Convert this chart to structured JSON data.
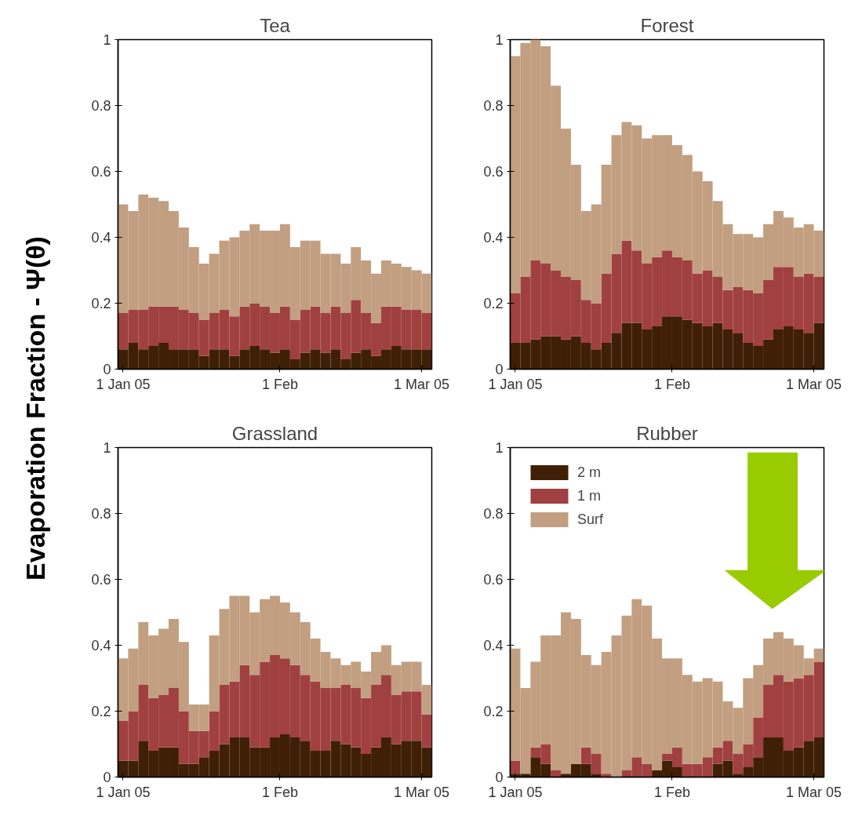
{
  "chart_data": [
    {
      "type": "bar",
      "stacked": true,
      "title": "Tea",
      "ylabel": "Evaporation Fraction - Ψ(θ)",
      "x": [
        "2005-01-01",
        "2005-01-03",
        "2005-01-05",
        "2005-01-07",
        "2005-01-09",
        "2005-01-11",
        "2005-01-13",
        "2005-01-15",
        "2005-01-17",
        "2005-01-19",
        "2005-01-21",
        "2005-01-23",
        "2005-01-25",
        "2005-01-27",
        "2005-01-29",
        "2005-01-31",
        "2005-02-02",
        "2005-02-04",
        "2005-02-06",
        "2005-02-08",
        "2005-02-10",
        "2005-02-12",
        "2005-02-14",
        "2005-02-16",
        "2005-02-18",
        "2005-02-20",
        "2005-02-22",
        "2005-02-24",
        "2005-02-26",
        "2005-02-28",
        "2005-03-02"
      ],
      "xlim": [
        "2004-12-31",
        "2005-03-03"
      ],
      "xticks": [
        {
          "value": "2005-01-01",
          "label": "1 Jan 05"
        },
        {
          "value": "2005-02-01",
          "label": "1 Feb"
        },
        {
          "value": "2005-03-01",
          "label": "1 Mar 05"
        }
      ],
      "ylim": [
        0,
        1
      ],
      "yticks": [
        0,
        0.2,
        0.4,
        0.6,
        0.8,
        1
      ],
      "series": [
        {
          "color": "#3f1f05",
          "values": [
            0.06,
            0.08,
            0.06,
            0.07,
            0.08,
            0.06,
            0.06,
            0.06,
            0.04,
            0.06,
            0.06,
            0.04,
            0.06,
            0.07,
            0.06,
            0.05,
            0.06,
            0.03,
            0.05,
            0.06,
            0.05,
            0.06,
            0.03,
            0.05,
            0.06,
            0.04,
            0.06,
            0.07,
            0.06,
            0.06,
            0.06
          ]
        },
        {
          "color": "#a04040",
          "values": [
            0.11,
            0.1,
            0.12,
            0.12,
            0.11,
            0.13,
            0.12,
            0.11,
            0.11,
            0.11,
            0.12,
            0.12,
            0.13,
            0.13,
            0.13,
            0.12,
            0.13,
            0.12,
            0.13,
            0.13,
            0.12,
            0.13,
            0.14,
            0.16,
            0.11,
            0.1,
            0.13,
            0.12,
            0.12,
            0.12,
            0.11
          ]
        },
        {
          "color": "#c29f80",
          "values": [
            0.33,
            0.3,
            0.35,
            0.33,
            0.32,
            0.29,
            0.25,
            0.2,
            0.17,
            0.18,
            0.21,
            0.24,
            0.23,
            0.24,
            0.23,
            0.25,
            0.25,
            0.22,
            0.21,
            0.2,
            0.18,
            0.16,
            0.15,
            0.16,
            0.16,
            0.15,
            0.14,
            0.13,
            0.13,
            0.12,
            0.12
          ]
        }
      ]
    },
    {
      "type": "bar",
      "stacked": true,
      "title": "Forest",
      "x": [
        "2005-01-01",
        "2005-01-03",
        "2005-01-05",
        "2005-01-07",
        "2005-01-09",
        "2005-01-11",
        "2005-01-13",
        "2005-01-15",
        "2005-01-17",
        "2005-01-19",
        "2005-01-21",
        "2005-01-23",
        "2005-01-25",
        "2005-01-27",
        "2005-01-29",
        "2005-01-31",
        "2005-02-02",
        "2005-02-04",
        "2005-02-06",
        "2005-02-08",
        "2005-02-10",
        "2005-02-12",
        "2005-02-14",
        "2005-02-16",
        "2005-02-18",
        "2005-02-20",
        "2005-02-22",
        "2005-02-24",
        "2005-02-26",
        "2005-02-28",
        "2005-03-02"
      ],
      "xlim": [
        "2004-12-31",
        "2005-03-03"
      ],
      "xticks": [
        {
          "value": "2005-01-01",
          "label": "1 Jan 05"
        },
        {
          "value": "2005-02-01",
          "label": "1 Feb"
        },
        {
          "value": "2005-03-01",
          "label": "1 Mar 05"
        }
      ],
      "ylim": [
        0,
        1
      ],
      "yticks": [
        0,
        0.2,
        0.4,
        0.6,
        0.8,
        1
      ],
      "series": [
        {
          "color": "#3f1f05",
          "values": [
            0.08,
            0.08,
            0.09,
            0.1,
            0.1,
            0.09,
            0.1,
            0.08,
            0.06,
            0.08,
            0.11,
            0.14,
            0.14,
            0.12,
            0.13,
            0.16,
            0.16,
            0.15,
            0.14,
            0.13,
            0.14,
            0.12,
            0.11,
            0.08,
            0.07,
            0.09,
            0.12,
            0.13,
            0.12,
            0.11,
            0.14
          ]
        },
        {
          "color": "#a04040",
          "values": [
            0.15,
            0.2,
            0.24,
            0.22,
            0.2,
            0.19,
            0.17,
            0.13,
            0.14,
            0.21,
            0.24,
            0.25,
            0.22,
            0.2,
            0.21,
            0.2,
            0.18,
            0.18,
            0.15,
            0.17,
            0.14,
            0.12,
            0.14,
            0.16,
            0.16,
            0.18,
            0.19,
            0.18,
            0.16,
            0.18,
            0.14
          ]
        },
        {
          "color": "#c29f80",
          "values": [
            0.72,
            0.71,
            0.67,
            0.66,
            0.56,
            0.45,
            0.35,
            0.27,
            0.3,
            0.33,
            0.36,
            0.36,
            0.38,
            0.38,
            0.37,
            0.35,
            0.34,
            0.32,
            0.31,
            0.27,
            0.23,
            0.2,
            0.16,
            0.17,
            0.17,
            0.17,
            0.17,
            0.15,
            0.15,
            0.15,
            0.14
          ]
        }
      ]
    },
    {
      "type": "bar",
      "stacked": true,
      "title": "Grassland",
      "x": [
        "2005-01-01",
        "2005-01-03",
        "2005-01-05",
        "2005-01-07",
        "2005-01-09",
        "2005-01-11",
        "2005-01-13",
        "2005-01-15",
        "2005-01-17",
        "2005-01-19",
        "2005-01-21",
        "2005-01-23",
        "2005-01-25",
        "2005-01-27",
        "2005-01-29",
        "2005-01-31",
        "2005-02-02",
        "2005-02-04",
        "2005-02-06",
        "2005-02-08",
        "2005-02-10",
        "2005-02-12",
        "2005-02-14",
        "2005-02-16",
        "2005-02-18",
        "2005-02-20",
        "2005-02-22",
        "2005-02-24",
        "2005-02-26",
        "2005-02-28",
        "2005-03-02"
      ],
      "xlim": [
        "2004-12-31",
        "2005-03-03"
      ],
      "xticks": [
        {
          "value": "2005-01-01",
          "label": "1 Jan 05"
        },
        {
          "value": "2005-02-01",
          "label": "1 Feb"
        },
        {
          "value": "2005-03-01",
          "label": "1 Mar 05"
        }
      ],
      "ylim": [
        0,
        1
      ],
      "yticks": [
        0,
        0.2,
        0.4,
        0.6,
        0.8,
        1
      ],
      "series": [
        {
          "color": "#3f1f05",
          "values": [
            0.05,
            0.05,
            0.11,
            0.08,
            0.09,
            0.09,
            0.04,
            0.04,
            0.06,
            0.08,
            0.1,
            0.12,
            0.12,
            0.09,
            0.09,
            0.12,
            0.13,
            0.12,
            0.11,
            0.08,
            0.08,
            0.11,
            0.1,
            0.09,
            0.07,
            0.09,
            0.12,
            0.1,
            0.11,
            0.11,
            0.09
          ]
        },
        {
          "color": "#a04040",
          "values": [
            0.12,
            0.15,
            0.17,
            0.16,
            0.16,
            0.18,
            0.16,
            0.1,
            0.08,
            0.12,
            0.18,
            0.17,
            0.22,
            0.22,
            0.26,
            0.25,
            0.23,
            0.22,
            0.2,
            0.21,
            0.19,
            0.16,
            0.18,
            0.18,
            0.17,
            0.19,
            0.19,
            0.15,
            0.15,
            0.15,
            0.1
          ]
        },
        {
          "color": "#c29f80",
          "values": [
            0.19,
            0.19,
            0.19,
            0.19,
            0.2,
            0.21,
            0.21,
            0.08,
            0.08,
            0.23,
            0.23,
            0.26,
            0.21,
            0.19,
            0.19,
            0.18,
            0.17,
            0.16,
            0.16,
            0.13,
            0.11,
            0.09,
            0.06,
            0.08,
            0.08,
            0.1,
            0.09,
            0.09,
            0.09,
            0.09,
            0.09
          ]
        }
      ]
    },
    {
      "type": "bar",
      "stacked": true,
      "title": "Rubber",
      "x": [
        "2005-01-01",
        "2005-01-03",
        "2005-01-05",
        "2005-01-07",
        "2005-01-09",
        "2005-01-11",
        "2005-01-13",
        "2005-01-15",
        "2005-01-17",
        "2005-01-19",
        "2005-01-21",
        "2005-01-23",
        "2005-01-25",
        "2005-01-27",
        "2005-01-29",
        "2005-01-31",
        "2005-02-02",
        "2005-02-04",
        "2005-02-06",
        "2005-02-08",
        "2005-02-10",
        "2005-02-12",
        "2005-02-14",
        "2005-02-16",
        "2005-02-18",
        "2005-02-20",
        "2005-02-22",
        "2005-02-24",
        "2005-02-26",
        "2005-02-28",
        "2005-03-02"
      ],
      "xlim": [
        "2004-12-31",
        "2005-03-03"
      ],
      "xticks": [
        {
          "value": "2005-01-01",
          "label": "1 Jan 05"
        },
        {
          "value": "2005-02-01",
          "label": "1 Feb"
        },
        {
          "value": "2005-03-01",
          "label": "1 Mar 05"
        }
      ],
      "ylim": [
        0,
        1
      ],
      "yticks": [
        0,
        0.2,
        0.4,
        0.6,
        0.8,
        1
      ],
      "legend": "top left",
      "series": [
        {
          "name": "2 m",
          "color": "#3f1f05",
          "values": [
            0.01,
            0.01,
            0.06,
            0.04,
            0,
            0.01,
            0.04,
            0.04,
            0.01,
            0,
            0,
            0,
            0,
            0,
            0.02,
            0.05,
            0.03,
            0,
            0,
            0,
            0.04,
            0.05,
            0.01,
            0.03,
            0.06,
            0.12,
            0.12,
            0.08,
            0.09,
            0.11,
            0.12
          ]
        },
        {
          "name": "1 m",
          "color": "#a04040",
          "values": [
            0.04,
            0,
            0.03,
            0.06,
            0.02,
            0,
            0,
            0.05,
            0.06,
            0.01,
            0,
            0.02,
            0.06,
            0.04,
            0,
            0.02,
            0.06,
            0.04,
            0.04,
            0.06,
            0.05,
            0.06,
            0.06,
            0.07,
            0.12,
            0.16,
            0.19,
            0.21,
            0.21,
            0.2,
            0.23
          ]
        },
        {
          "name": "Surf",
          "color": "#c29f80",
          "values": [
            0.34,
            0.26,
            0.26,
            0.33,
            0.41,
            0.49,
            0.44,
            0.28,
            0.27,
            0.37,
            0.43,
            0.47,
            0.48,
            0.48,
            0.4,
            0.29,
            0.27,
            0.27,
            0.25,
            0.24,
            0.2,
            0.12,
            0.14,
            0.2,
            0.16,
            0.14,
            0.13,
            0.13,
            0.1,
            0.05,
            0.04
          ]
        }
      ]
    }
  ]
}
